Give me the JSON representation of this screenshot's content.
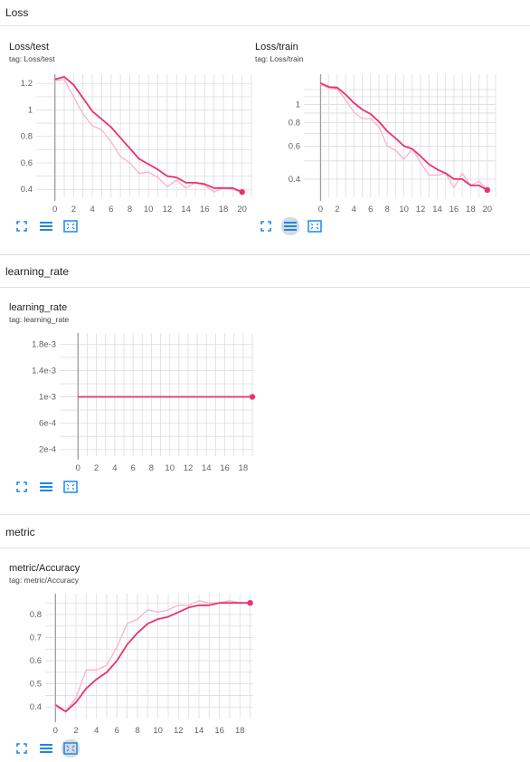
{
  "sections": [
    {
      "title": "Loss"
    },
    {
      "title": "learning_rate"
    },
    {
      "title": "metric"
    }
  ],
  "cards": [
    {
      "title": "Loss/test",
      "tag": "tag: Loss/test"
    },
    {
      "title": "Loss/train",
      "tag": "tag: Loss/train"
    },
    {
      "title": "learning_rate",
      "tag": "tag: learning_rate"
    },
    {
      "title": "metric/Accuracy",
      "tag": "tag: metric/Accuracy"
    }
  ],
  "colors": {
    "smoothed": "#e8336d",
    "raw": "#f7b3ca",
    "grid": "#dddddd",
    "axis": "#9e9e9e",
    "icon": "#1e88e5"
  },
  "icons": [
    "fullscreen-icon",
    "toggle-log-scale-icon",
    "fit-domain-icon"
  ],
  "chart_data": [
    {
      "type": "line",
      "title": "Loss/test",
      "x_ticks": [
        "0",
        "2",
        "4",
        "6",
        "8",
        "10",
        "12",
        "14",
        "16",
        "18",
        "20"
      ],
      "y_ticks": [
        "0.4",
        "0.6",
        "0.8",
        "1",
        "1.2"
      ],
      "xlim": [
        -2,
        21
      ],
      "ylim": [
        0.34,
        1.27
      ],
      "series": [
        {
          "style": "raw",
          "x": [
            0,
            1,
            2,
            3,
            4,
            5,
            6,
            7,
            8,
            9,
            10,
            11,
            12,
            13,
            14,
            15,
            16,
            17,
            18,
            19,
            20
          ],
          "y": [
            1.22,
            1.23,
            1.1,
            0.97,
            0.88,
            0.85,
            0.76,
            0.65,
            0.6,
            0.52,
            0.53,
            0.49,
            0.42,
            0.47,
            0.41,
            0.45,
            0.43,
            0.38,
            0.41,
            0.4,
            0.38
          ]
        },
        {
          "style": "smoothed",
          "x": [
            0,
            1,
            2,
            3,
            4,
            5,
            6,
            7,
            8,
            9,
            10,
            11,
            12,
            13,
            14,
            15,
            16,
            17,
            18,
            19,
            20
          ],
          "y": [
            1.23,
            1.25,
            1.19,
            1.09,
            0.99,
            0.93,
            0.87,
            0.79,
            0.71,
            0.63,
            0.59,
            0.55,
            0.5,
            0.49,
            0.45,
            0.45,
            0.44,
            0.41,
            0.41,
            0.41,
            0.38
          ]
        }
      ]
    },
    {
      "type": "line",
      "title": "Loss/train",
      "y_scale": "log",
      "x_ticks": [
        "0",
        "2",
        "4",
        "6",
        "8",
        "10",
        "12",
        "14",
        "16",
        "18",
        "20"
      ],
      "y_ticks": [
        "0.4",
        "0.6",
        "0.8",
        "1"
      ],
      "xlim": [
        -2,
        21
      ],
      "ylim": [
        0.32,
        1.45
      ],
      "series": [
        {
          "style": "raw",
          "x": [
            0,
            1,
            2,
            3,
            4,
            5,
            6,
            7,
            8,
            9,
            10,
            11,
            12,
            13,
            14,
            15,
            16,
            17,
            18,
            19,
            20
          ],
          "y": [
            1.28,
            1.22,
            1.21,
            1.06,
            0.91,
            0.84,
            0.84,
            0.76,
            0.6,
            0.57,
            0.51,
            0.58,
            0.49,
            0.42,
            0.42,
            0.43,
            0.36,
            0.43,
            0.37,
            0.39,
            0.35
          ]
        },
        {
          "style": "smoothed",
          "x": [
            0,
            1,
            2,
            3,
            4,
            5,
            6,
            7,
            8,
            9,
            10,
            11,
            12,
            13,
            14,
            15,
            16,
            17,
            18,
            19,
            20
          ],
          "y": [
            1.3,
            1.24,
            1.23,
            1.13,
            1.02,
            0.94,
            0.89,
            0.81,
            0.72,
            0.66,
            0.6,
            0.58,
            0.53,
            0.48,
            0.45,
            0.43,
            0.4,
            0.4,
            0.37,
            0.37,
            0.35
          ]
        }
      ]
    },
    {
      "type": "line",
      "title": "learning_rate",
      "x_ticks": [
        "0",
        "2",
        "4",
        "6",
        "8",
        "10",
        "12",
        "14",
        "16",
        "18"
      ],
      "y_ticks": [
        "2e-4",
        "6e-4",
        "1e-3",
        "1.4e-3",
        "1.8e-3"
      ],
      "xlim": [
        -2,
        19.1
      ],
      "ylim": [
        0.0001,
        0.00197
      ],
      "series": [
        {
          "style": "smoothed",
          "x": [
            0,
            1,
            2,
            3,
            4,
            5,
            6,
            7,
            8,
            9,
            10,
            11,
            12,
            13,
            14,
            15,
            16,
            17,
            18,
            19
          ],
          "y": [
            0.001,
            0.001,
            0.001,
            0.001,
            0.001,
            0.001,
            0.001,
            0.001,
            0.001,
            0.001,
            0.001,
            0.001,
            0.001,
            0.001,
            0.001,
            0.001,
            0.001,
            0.001,
            0.001,
            0.001
          ]
        }
      ]
    },
    {
      "type": "line",
      "title": "metric/Accuracy",
      "x_ticks": [
        "0",
        "2",
        "4",
        "6",
        "8",
        "10",
        "12",
        "14",
        "16",
        "18"
      ],
      "y_ticks": [
        "0.4",
        "0.5",
        "0.6",
        "0.7",
        "0.8"
      ],
      "xlim": [
        -1,
        19.3
      ],
      "ylim": [
        0.35,
        0.89
      ],
      "series": [
        {
          "style": "raw",
          "x": [
            0,
            1,
            2,
            3,
            4,
            5,
            6,
            7,
            8,
            9,
            10,
            11,
            12,
            13,
            14,
            15,
            16,
            17,
            18,
            19
          ],
          "y": [
            0.4,
            0.38,
            0.44,
            0.56,
            0.56,
            0.58,
            0.66,
            0.76,
            0.78,
            0.82,
            0.81,
            0.82,
            0.84,
            0.84,
            0.86,
            0.85,
            0.85,
            0.86,
            0.85,
            0.85
          ]
        },
        {
          "style": "smoothed",
          "x": [
            0,
            1,
            2,
            3,
            4,
            5,
            6,
            7,
            8,
            9,
            10,
            11,
            12,
            13,
            14,
            15,
            16,
            17,
            18,
            19
          ],
          "y": [
            0.41,
            0.38,
            0.42,
            0.48,
            0.52,
            0.55,
            0.6,
            0.67,
            0.72,
            0.76,
            0.78,
            0.79,
            0.81,
            0.83,
            0.84,
            0.84,
            0.85,
            0.85,
            0.85,
            0.85
          ]
        }
      ]
    }
  ]
}
